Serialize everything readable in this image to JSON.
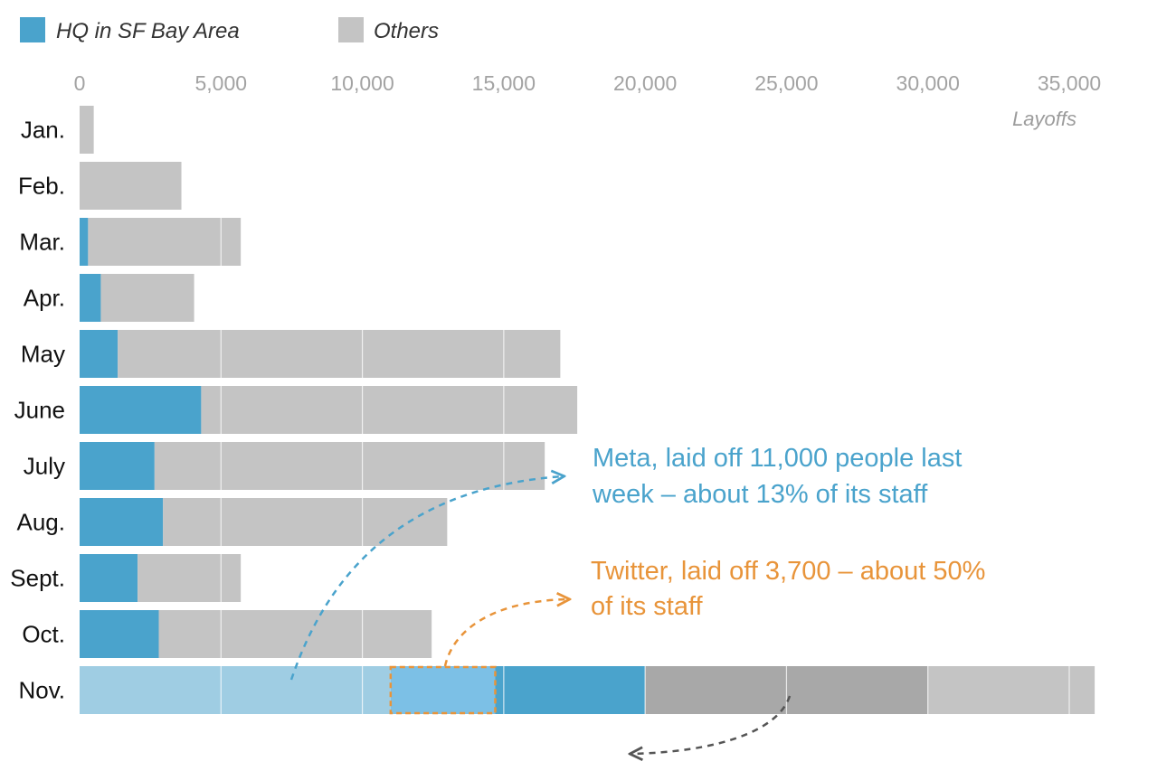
{
  "chart_data": {
    "type": "bar",
    "orientation": "horizontal",
    "stacked": true,
    "categories": [
      "Jan.",
      "Feb.",
      "Mar.",
      "Apr.",
      "May",
      "June",
      "July",
      "Aug.",
      "Sept.",
      "Oct.",
      "Nov."
    ],
    "series": [
      {
        "name": "HQ in SF Bay Area",
        "values": [
          0,
          0,
          300,
          750,
          1350,
          4300,
          2650,
          2950,
          2050,
          2800,
          20000
        ]
      },
      {
        "name": "Others",
        "values": [
          500,
          3600,
          5400,
          3300,
          15650,
          13300,
          13800,
          10050,
          3650,
          9650,
          15900
        ]
      }
    ],
    "xlim": [
      0,
      35000
    ],
    "xticks": [
      "0",
      "5,000",
      "10,000",
      "15,000",
      "20,000",
      "25,000",
      "30,000",
      "35,000"
    ],
    "xtick_values": [
      0,
      5000,
      10000,
      15000,
      20000,
      25000,
      30000,
      35000
    ],
    "xlabel": "Layoffs",
    "legend_position": "top-left",
    "grid": "vertical lines on bars",
    "nov_breakdown": {
      "meta": 11000,
      "twitter": 3700,
      "other_bay_area": 5300,
      "others_highlighted": 10000,
      "others_rest": 5900
    },
    "annotations": [
      {
        "text_lines": [
          "Meta, laid off 11,000 people last",
          "week – about 13% of its staff"
        ],
        "color": "#4aa3cc"
      },
      {
        "text_lines": [
          "Twitter, laid off 3,700 – about 50%",
          "of its staff"
        ],
        "color": "#e8943a"
      }
    ],
    "colors": {
      "bay_area": "#4aa3cc",
      "others": "#c4c4c4",
      "meta_fill": "#9fcde3",
      "twitter_fill": "#7cc0e6",
      "twitter_border": "#e8943a",
      "others_highlight": "#a8a8a8",
      "tick": "#a3a3a3",
      "gridline": "#ffffff"
    }
  }
}
